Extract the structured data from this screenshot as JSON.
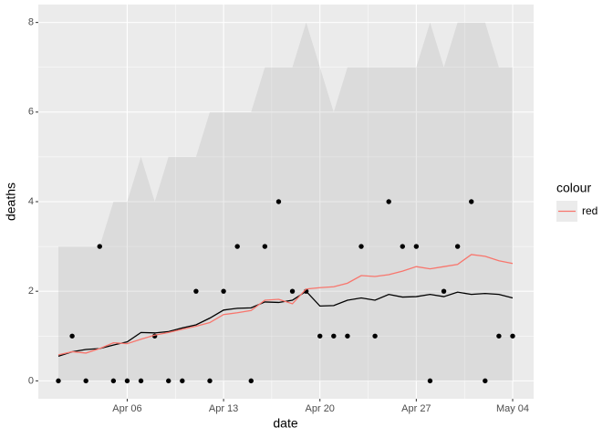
{
  "chart_data": {
    "type": "line",
    "x_label": "date",
    "y_label": "deaths",
    "legend_title": "colour",
    "x": [
      "Apr 01",
      "Apr 02",
      "Apr 03",
      "Apr 04",
      "Apr 05",
      "Apr 06",
      "Apr 07",
      "Apr 08",
      "Apr 09",
      "Apr 10",
      "Apr 11",
      "Apr 12",
      "Apr 13",
      "Apr 14",
      "Apr 15",
      "Apr 16",
      "Apr 17",
      "Apr 18",
      "Apr 19",
      "Apr 20",
      "Apr 21",
      "Apr 22",
      "Apr 23",
      "Apr 24",
      "Apr 25",
      "Apr 26",
      "Apr 27",
      "Apr 28",
      "Apr 29",
      "Apr 30",
      "May 01",
      "May 02",
      "May 03",
      "May 04"
    ],
    "xticks": [
      "Apr 06",
      "Apr 13",
      "Apr 20",
      "Apr 27",
      "May 04"
    ],
    "points": [
      0,
      1,
      0,
      3,
      0,
      0,
      0,
      1,
      0,
      0,
      2,
      0,
      2,
      3,
      0,
      3,
      4,
      2,
      2,
      1,
      1,
      1,
      3,
      1,
      4,
      3,
      3,
      0,
      2,
      3,
      4,
      0,
      1,
      1
    ],
    "ribbon_lower": [
      0,
      0,
      0,
      0,
      0,
      0,
      0,
      0,
      0,
      0,
      0,
      0,
      0,
      0,
      0,
      0,
      0,
      0,
      0,
      0,
      0,
      0,
      0,
      0,
      0,
      0,
      0,
      0,
      0,
      0,
      0,
      0,
      0,
      0
    ],
    "ribbon_upper": [
      3,
      3,
      3,
      3,
      4,
      4,
      5,
      4,
      5,
      5,
      5,
      6,
      6,
      6,
      6,
      7,
      7,
      7,
      8,
      7,
      6,
      7,
      7,
      7,
      7,
      7,
      7,
      8,
      7,
      8,
      8,
      8,
      7,
      7
    ],
    "series": [
      {
        "color": "#000000",
        "values": [
          0.55,
          0.65,
          0.7,
          0.72,
          0.8,
          0.87,
          1.08,
          1.07,
          1.1,
          1.18,
          1.25,
          1.4,
          1.58,
          1.62,
          1.63,
          1.76,
          1.75,
          1.8,
          2.0,
          1.67,
          1.68,
          1.8,
          1.85,
          1.8,
          1.93,
          1.87,
          1.88,
          1.93,
          1.88,
          1.98,
          1.93,
          1.95,
          1.93,
          1.85
        ]
      },
      {
        "name": "red",
        "color": "#F8766D",
        "values": [
          0.58,
          0.65,
          0.62,
          0.72,
          0.85,
          0.83,
          0.93,
          1.02,
          1.08,
          1.15,
          1.22,
          1.3,
          1.48,
          1.52,
          1.57,
          1.8,
          1.82,
          1.72,
          2.05,
          2.08,
          2.1,
          2.18,
          2.35,
          2.33,
          2.37,
          2.45,
          2.55,
          2.5,
          2.55,
          2.6,
          2.82,
          2.78,
          2.68,
          2.62
        ]
      }
    ],
    "ylim": [
      -0.4,
      8.4
    ],
    "yticks": [
      0,
      2,
      4,
      6,
      8
    ],
    "grid": true
  }
}
